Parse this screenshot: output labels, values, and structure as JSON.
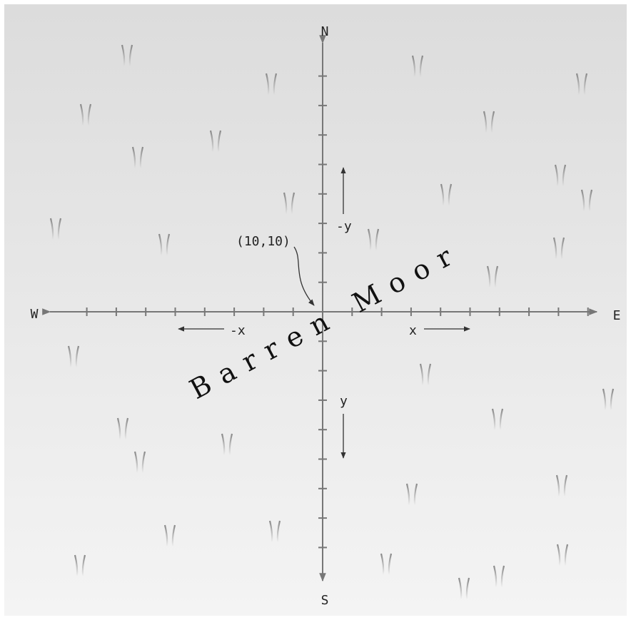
{
  "compass": {
    "north": "N",
    "south": "S",
    "west": "W",
    "east": "E"
  },
  "axes": {
    "neg_x": "-x",
    "pos_x": "x",
    "neg_y": "-y",
    "pos_y": "y"
  },
  "marker": {
    "label": "(10,10)"
  },
  "region": {
    "name": "Barren Moor"
  }
}
